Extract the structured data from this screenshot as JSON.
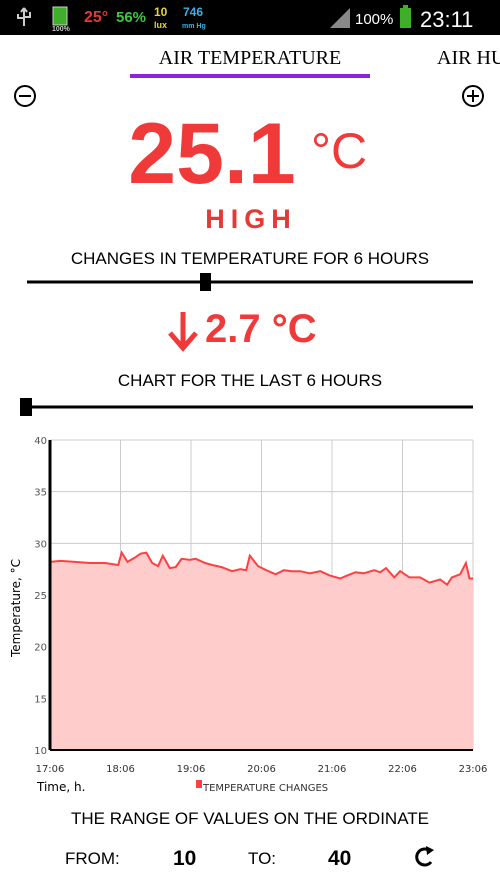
{
  "status_bar": {
    "temperature": "25°",
    "humidity": "56%",
    "light": "10",
    "light_unit": "lux",
    "pressure": "746",
    "pressure_unit": "mm Hg",
    "battery_small": "100%",
    "battery": "100%",
    "time": "23:11"
  },
  "tabs": [
    "AIR TEMPERATURE",
    "AIR HU"
  ],
  "reading": {
    "value": "25.1",
    "unit": "°C",
    "level": "HIGH"
  },
  "change": {
    "caption": "CHANGES IN TEMPERATURE FOR 6 HOURS",
    "value": "2.7 °C"
  },
  "chart_caption": "CHART FOR THE LAST 6 HOURS",
  "chart": {
    "type": "area",
    "x_label": "Time, h.",
    "y_label": "Temperature, °C",
    "series": [
      {
        "name": "TEMPERATURE CHANGES",
        "color": "#ff4040",
        "fill": "#ffcccc",
        "x": [
          0,
          9,
          21,
          34,
          47,
          58,
          61,
          66,
          72,
          77,
          82,
          87,
          92,
          96,
          102,
          107,
          112,
          119,
          124,
          132,
          138,
          146,
          155,
          162,
          167,
          170,
          177,
          184,
          192,
          199,
          206,
          213,
          221,
          230,
          238,
          247,
          253,
          260,
          267,
          276,
          281,
          286,
          293,
          298,
          306,
          315,
          323,
          332,
          338,
          342,
          349,
          354,
          357,
          360
        ],
        "values": [
          28.2,
          28.3,
          28.2,
          28.1,
          28.1,
          27.9,
          29.1,
          28.2,
          28.6,
          29.0,
          29.1,
          28.1,
          27.8,
          28.8,
          27.6,
          27.7,
          28.5,
          28.4,
          28.5,
          28.1,
          27.9,
          27.7,
          27.3,
          27.5,
          27.4,
          28.8,
          27.8,
          27.4,
          27.0,
          27.4,
          27.3,
          27.3,
          27.1,
          27.3,
          26.9,
          26.6,
          26.9,
          27.2,
          27.1,
          27.4,
          27.2,
          27.6,
          26.7,
          27.3,
          26.7,
          26.7,
          26.2,
          26.5,
          26.0,
          26.7,
          27.0,
          28.1,
          26.6,
          26.6
        ]
      }
    ],
    "xlim": [
      0,
      360
    ],
    "xticks": [
      {
        "value": 0,
        "label": "17:06"
      },
      {
        "value": 60,
        "label": "18:06"
      },
      {
        "value": 120,
        "label": "19:06"
      },
      {
        "value": 180,
        "label": "20:06"
      },
      {
        "value": 240,
        "label": "21:06"
      },
      {
        "value": 300,
        "label": "22:06"
      },
      {
        "value": 360,
        "label": "23:06"
      }
    ],
    "ylim": [
      10,
      40
    ],
    "yticks": [
      10,
      15,
      20,
      25,
      30,
      35,
      40
    ],
    "grid": true
  },
  "range": {
    "caption": "THE RANGE OF VALUES ON THE ORDINATE",
    "from_label": "FROM:",
    "from": "10",
    "to_label": "TO:",
    "to": "40"
  }
}
